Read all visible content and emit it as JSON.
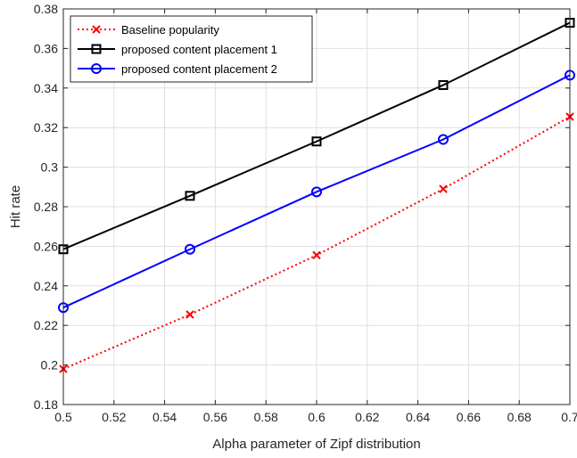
{
  "chart_data": {
    "type": "line",
    "xlabel": "Alpha parameter of Zipf distribution",
    "ylabel": "Hit rate",
    "xlim": [
      0.5,
      0.7
    ],
    "ylim": [
      0.18,
      0.38
    ],
    "x_ticks": [
      "0.5",
      "0.52",
      "0.54",
      "0.56",
      "0.58",
      "0.6",
      "0.62",
      "0.64",
      "0.66",
      "0.68",
      "0.7"
    ],
    "y_ticks": [
      "0.18",
      "0.2",
      "0.22",
      "0.24",
      "0.26",
      "0.28",
      "0.3",
      "0.32",
      "0.34",
      "0.36",
      "0.38"
    ],
    "grid": true,
    "legend_position": "top-left",
    "x": [
      0.5,
      0.55,
      0.6,
      0.65,
      0.7
    ],
    "series": [
      {
        "name": "Baseline popularity",
        "values": [
          0.198,
          0.2255,
          0.2555,
          0.289,
          0.3255
        ],
        "color": "#ff0000",
        "line_style": "dotted",
        "marker": "x"
      },
      {
        "name": "proposed content placement 1",
        "values": [
          0.2585,
          0.2855,
          0.313,
          0.3415,
          0.373
        ],
        "color": "#000000",
        "line_style": "solid",
        "marker": "square"
      },
      {
        "name": "proposed content placement 2",
        "values": [
          0.229,
          0.2585,
          0.2875,
          0.314,
          0.3465
        ],
        "color": "#0000ff",
        "line_style": "solid",
        "marker": "circle"
      }
    ]
  }
}
